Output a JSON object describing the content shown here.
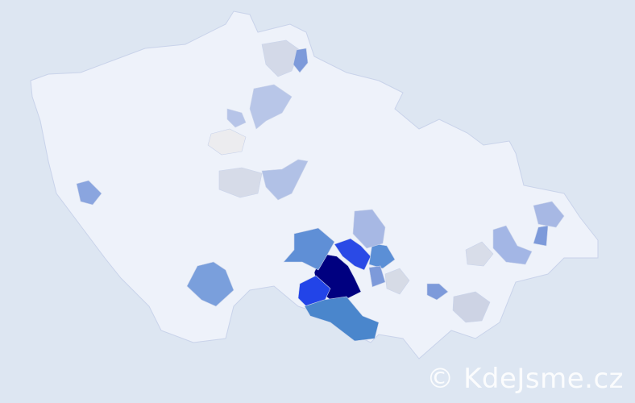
{
  "map": {
    "background_color": "#dde6f2",
    "base_region_color": "#eef2fa",
    "border_color": "#c9d3ea",
    "highlighted_region_colors": [
      "#000080",
      "#2244e8",
      "#2a4ae6",
      "#4a86cc",
      "#5f8fd6",
      "#7a9fdc",
      "#5b8fd6",
      "#a7b8e4",
      "#b1c1e6",
      "#b8c6e8",
      "#d6dbe8",
      "#d3d9e8",
      "#cdd3e4",
      "#d8dde9",
      "#d6dbe6",
      "#8aa5df",
      "#a3b6e5",
      "#a7b8e4",
      "#7d9ada",
      "#7d9ada",
      "#ececef",
      "#7d9ada",
      "#7d9ada",
      "#b6c4e8"
    ]
  },
  "watermark": {
    "text": "© KdeJsme.cz"
  }
}
